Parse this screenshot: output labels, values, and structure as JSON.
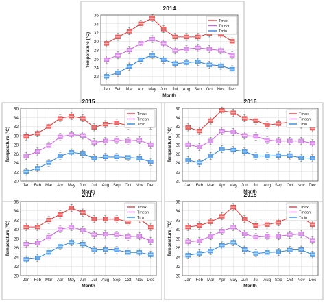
{
  "colors": {
    "tmax": "#e04040",
    "tmean": "#cc66dd",
    "tmin": "#3388dd",
    "box_border": "#333333",
    "grid": "#dddddd"
  },
  "chart_data": [
    {
      "type": "line",
      "title": "2014",
      "xlabel": "Month",
      "ylabel": "Temperature (°C)",
      "ylim": [
        20,
        36
      ],
      "yticks": [
        22,
        24,
        26,
        28,
        30,
        32,
        34,
        36
      ],
      "categories": [
        "Jan",
        "Feb",
        "Mar",
        "Apr",
        "May",
        "Jun",
        "Jul",
        "Aug",
        "Sep",
        "Oct",
        "Nov",
        "Dec"
      ],
      "legend": "top-right",
      "series": [
        {
          "name": "Tmax",
          "values": [
            29.5,
            31.0,
            32.3,
            34.0,
            35.3,
            32.8,
            31.0,
            31.0,
            31.0,
            31.8,
            31.6,
            30.0
          ]
        },
        {
          "name": "Tmean",
          "values": [
            25.8,
            26.8,
            28.0,
            29.5,
            30.5,
            29.5,
            27.9,
            28.2,
            28.5,
            28.2,
            27.9,
            26.8
          ]
        },
        {
          "name": "Tmin",
          "values": [
            22.0,
            22.8,
            24.2,
            25.8,
            26.8,
            25.8,
            24.9,
            25.1,
            25.3,
            24.6,
            24.4,
            23.6
          ]
        }
      ]
    },
    {
      "type": "line",
      "title": "2015",
      "xlabel": "Month",
      "ylabel": "Temperature (°C)",
      "ylim": [
        20,
        36
      ],
      "yticks": [
        20,
        22,
        24,
        26,
        28,
        30,
        32,
        34,
        36
      ],
      "categories": [
        "Jan",
        "Feb",
        "Mar",
        "Apr",
        "May",
        "Jun",
        "Jul",
        "Aug",
        "Sep",
        "Oct",
        "Nov",
        "Dec"
      ],
      "legend": "top-right",
      "series": [
        {
          "name": "Tmax",
          "values": [
            29.8,
            30.5,
            32.0,
            33.8,
            34.3,
            33.8,
            31.8,
            32.5,
            32.8,
            32.2,
            33.0,
            32.2
          ]
        },
        {
          "name": "Tmean",
          "values": [
            25.5,
            26.5,
            27.8,
            29.7,
            30.2,
            30.0,
            28.5,
            28.8,
            29.0,
            28.8,
            29.0,
            28.0
          ]
        },
        {
          "name": "Tmin",
          "values": [
            22.0,
            22.8,
            24.0,
            25.5,
            26.3,
            26.0,
            25.0,
            25.3,
            25.3,
            25.2,
            25.0,
            24.2
          ]
        }
      ]
    },
    {
      "type": "line",
      "title": "2016",
      "xlabel": "Month",
      "ylabel": "Temperature (°C)",
      "ylim": [
        20,
        36
      ],
      "yticks": [
        20,
        22,
        24,
        26,
        28,
        30,
        32,
        34,
        36
      ],
      "categories": [
        "Jan",
        "Feb",
        "Mar",
        "Apr",
        "May",
        "Jun",
        "Jul",
        "Aug",
        "Sep",
        "Oct",
        "Nov",
        "Dec"
      ],
      "legend": "top-right",
      "series": [
        {
          "name": "Tmax",
          "values": [
            31.8,
            31.0,
            33.3,
            35.5,
            35.0,
            33.8,
            33.3,
            32.3,
            32.6,
            33.0,
            32.4,
            31.6
          ]
        },
        {
          "name": "Tmean",
          "values": [
            28.0,
            27.5,
            28.8,
            31.0,
            30.8,
            30.0,
            29.8,
            29.0,
            28.8,
            28.8,
            28.8,
            28.3
          ]
        },
        {
          "name": "Tmin",
          "values": [
            24.6,
            24.0,
            25.5,
            27.0,
            26.8,
            26.5,
            25.5,
            25.5,
            25.6,
            25.6,
            25.1,
            25.0
          ]
        }
      ]
    },
    {
      "type": "line",
      "title": "2017",
      "xlabel": "Month",
      "ylabel": "Temperature (°C)",
      "ylim": [
        20,
        36
      ],
      "yticks": [
        20,
        22,
        24,
        26,
        28,
        30,
        32,
        34,
        36
      ],
      "categories": [
        "Jan",
        "Feb",
        "Mar",
        "Apr",
        "May",
        "Jun",
        "Jul",
        "Aug",
        "Sep",
        "Oct",
        "Nov",
        "Dec"
      ],
      "legend": "top-right",
      "series": [
        {
          "name": "Tmax",
          "values": [
            30.5,
            30.5,
            32.0,
            33.2,
            34.6,
            33.6,
            32.2,
            32.2,
            32.2,
            31.6,
            32.2,
            30.5
          ]
        },
        {
          "name": "Tmean",
          "values": [
            26.8,
            27.0,
            28.3,
            30.0,
            30.5,
            29.8,
            28.8,
            28.9,
            28.8,
            28.4,
            28.5,
            27.5
          ]
        },
        {
          "name": "Tmin",
          "values": [
            23.5,
            23.8,
            25.0,
            26.3,
            27.2,
            26.8,
            25.5,
            25.6,
            25.5,
            25.0,
            25.0,
            24.5
          ]
        }
      ]
    },
    {
      "type": "line",
      "title": "2018",
      "xlabel": "Month",
      "ylabel": "Temperature (°C)",
      "ylim": [
        20,
        36
      ],
      "yticks": [
        20,
        22,
        24,
        26,
        28,
        30,
        32,
        34,
        36
      ],
      "categories": [
        "Jan",
        "Feb",
        "Mar",
        "Apr",
        "May",
        "Jun",
        "Jul",
        "Aug",
        "Sep",
        "Oct",
        "Nov",
        "Dec"
      ],
      "legend": "top-right",
      "series": [
        {
          "name": "Tmax",
          "values": [
            30.5,
            30.8,
            31.6,
            32.8,
            34.8,
            32.2,
            30.8,
            31.0,
            31.5,
            32.6,
            32.6,
            31.0
          ]
        },
        {
          "name": "Tmean",
          "values": [
            27.3,
            27.5,
            28.5,
            29.6,
            30.5,
            29.0,
            28.3,
            28.5,
            28.5,
            28.8,
            29.0,
            27.6
          ]
        },
        {
          "name": "Tmin",
          "values": [
            24.4,
            24.8,
            25.3,
            26.5,
            27.2,
            25.6,
            24.8,
            25.0,
            25.1,
            25.5,
            25.6,
            24.5
          ]
        }
      ]
    }
  ]
}
